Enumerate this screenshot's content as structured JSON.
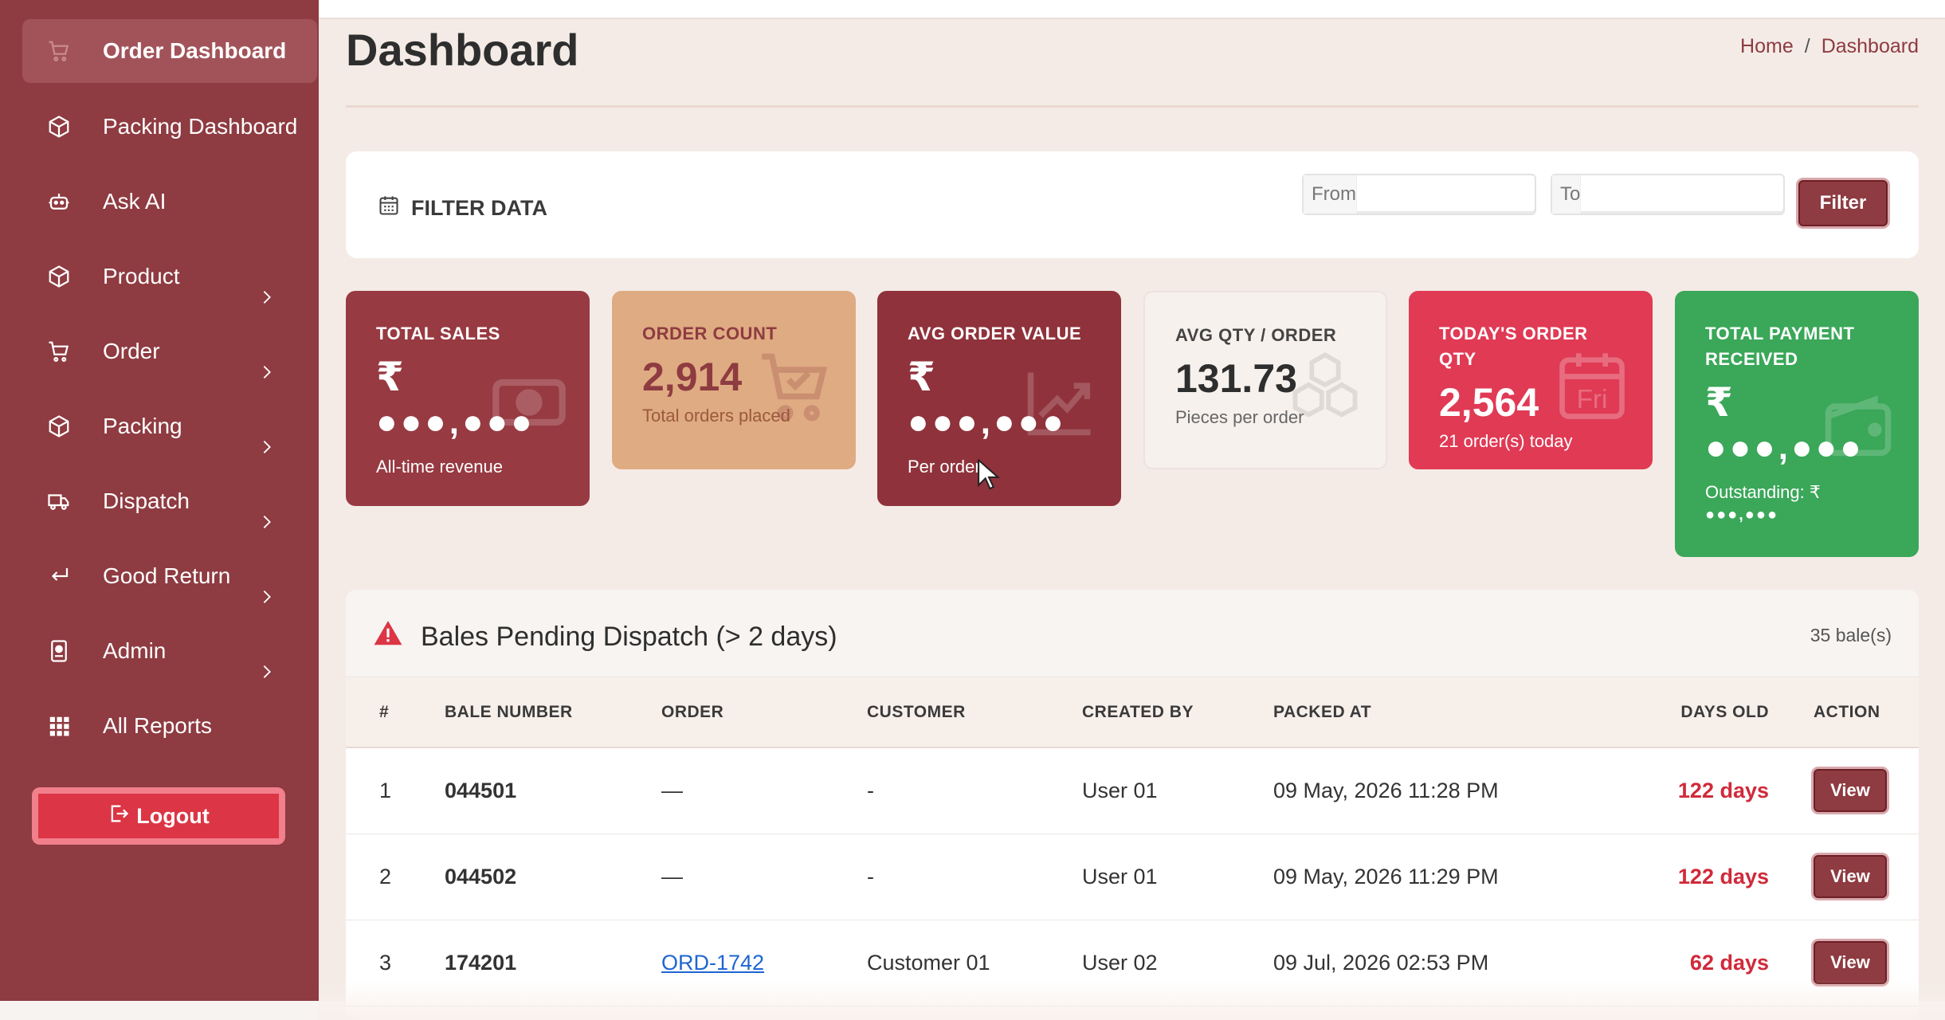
{
  "sidebar": {
    "items": [
      {
        "label": "Order Dashboard",
        "icon": "cart-icon"
      },
      {
        "label": "Packing Dashboard",
        "icon": "box-icon"
      },
      {
        "label": "Ask AI",
        "icon": "robot-icon"
      },
      {
        "label": "Product",
        "icon": "box-icon"
      },
      {
        "label": "Order",
        "icon": "cart-icon"
      },
      {
        "label": "Packing",
        "icon": "box-icon"
      },
      {
        "label": "Dispatch",
        "icon": "truck-icon"
      },
      {
        "label": "Good Return",
        "icon": "return-arrow-icon"
      },
      {
        "label": "Admin",
        "icon": "id-badge-icon"
      },
      {
        "label": "All Reports",
        "icon": "grid-icon"
      }
    ],
    "logout_label": "Logout"
  },
  "header": {
    "title": "Dashboard",
    "breadcrumb": {
      "home": "Home",
      "sep": "/",
      "current": "Dashboard"
    }
  },
  "filter": {
    "title": "FILTER DATA",
    "from_label": "From",
    "to_label": "To",
    "from_value": "",
    "to_value": "",
    "button_label": "Filter"
  },
  "stats": [
    {
      "label": "TOTAL SALES",
      "currency": "₹",
      "value": "●●●,●●●",
      "sub": "All-time revenue"
    },
    {
      "label": "ORDER COUNT",
      "value": "2,914",
      "sub": "Total orders placed"
    },
    {
      "label": "AVG ORDER VALUE",
      "currency": "₹",
      "value": "●●●,●●●",
      "sub": "Per order"
    },
    {
      "label": "AVG QTY / ORDER",
      "value": "131.73",
      "sub": "Pieces per order"
    },
    {
      "label": "TODAY'S ORDER QTY",
      "value": "2,564",
      "sub": "21 order(s) today",
      "day": "Fri"
    },
    {
      "label": "TOTAL PAYMENT RECEIVED",
      "currency": "₹",
      "value": "●●●,●●●",
      "sub": "Outstanding: ₹",
      "sub2": "●●●,●●●"
    }
  ],
  "pending": {
    "title": "Bales Pending Dispatch (> 2 days)",
    "count": "35 bale(s)",
    "columns": [
      "#",
      "BALE NUMBER",
      "ORDER",
      "CUSTOMER",
      "CREATED BY",
      "PACKED AT",
      "DAYS OLD",
      "ACTION"
    ],
    "rows": [
      {
        "num": "1",
        "bale": "044501",
        "order": "—",
        "customer": "-",
        "created_by": "User 01",
        "packed_at": "09 May, 2026 11:28 PM",
        "days": "122 days",
        "action": "View"
      },
      {
        "num": "2",
        "bale": "044502",
        "order": "—",
        "customer": "-",
        "created_by": "User 01",
        "packed_at": "09 May, 2026 11:29 PM",
        "days": "122 days",
        "action": "View"
      },
      {
        "num": "3",
        "bale": "174201",
        "order": "ORD-1742",
        "customer": "Customer 01",
        "created_by": "User 02",
        "packed_at": "09 Jul, 2026 02:53 PM",
        "days": "62 days",
        "action": "View"
      }
    ]
  },
  "colors": {
    "sidebar": "#8e3b41",
    "accent": "#8e3b41",
    "danger": "#dc3545",
    "success": "#3aa759"
  }
}
